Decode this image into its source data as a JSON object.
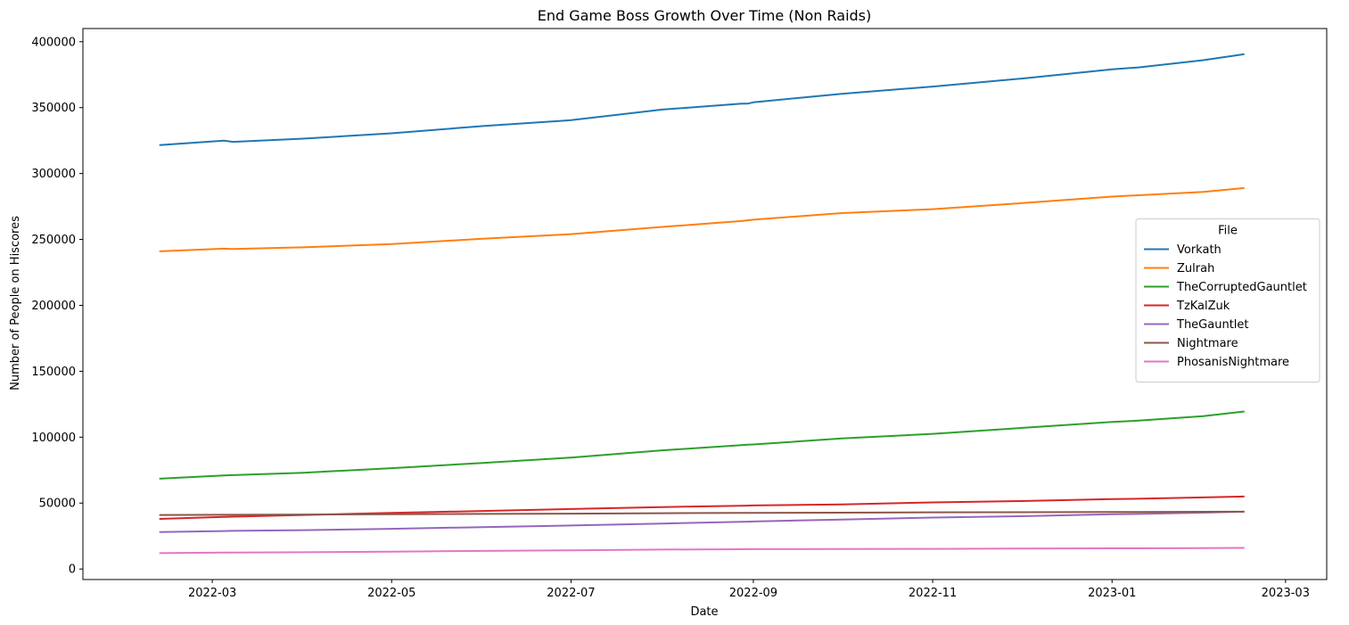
{
  "chart_data": {
    "type": "line",
    "title": "End Game Boss Growth Over Time (Non Raids)",
    "xlabel": "Date",
    "ylabel": "Number of People on Hiscores",
    "xlim": [
      "2022-01-16",
      "2023-03-15"
    ],
    "ylim": [
      -8000,
      410000
    ],
    "x_ticks": [
      "2022-03-01",
      "2022-05-01",
      "2022-07-01",
      "2022-09-01",
      "2022-11-01",
      "2023-01-01",
      "2023-03-01"
    ],
    "x_tick_labels": [
      "2022-03",
      "2022-05",
      "2022-07",
      "2022-09",
      "2022-11",
      "2023-01",
      "2023-03"
    ],
    "y_ticks": [
      0,
      50000,
      100000,
      150000,
      200000,
      250000,
      300000,
      350000,
      400000
    ],
    "y_tick_labels": [
      "0",
      "50000",
      "100000",
      "150000",
      "200000",
      "250000",
      "300000",
      "350000",
      "400000"
    ],
    "grid": false,
    "legend": {
      "title": "File",
      "placement": "center-right"
    },
    "x": [
      "2022-02-11",
      "2022-03-05",
      "2022-03-08",
      "2022-04-01",
      "2022-05-01",
      "2022-06-01",
      "2022-07-01",
      "2022-08-01",
      "2022-08-28",
      "2022-08-30",
      "2022-09-01",
      "2022-10-01",
      "2022-11-01",
      "2022-12-01",
      "2023-01-01",
      "2023-01-10",
      "2023-02-01",
      "2023-02-15"
    ],
    "series": [
      {
        "name": "Vorkath",
        "color": "#1f77b4",
        "values": [
          321500,
          325000,
          324000,
          326500,
          330500,
          336000,
          340500,
          348500,
          353000,
          353000,
          354000,
          360500,
          366000,
          372000,
          379000,
          380500,
          386000,
          390500
        ]
      },
      {
        "name": "Zulrah",
        "color": "#ff7f0e",
        "values": [
          241000,
          243000,
          242800,
          244000,
          246500,
          250500,
          254000,
          259500,
          264000,
          264500,
          265000,
          270000,
          273000,
          277500,
          282500,
          283500,
          286000,
          289000
        ]
      },
      {
        "name": "TheCorruptedGauntlet",
        "color": "#2ca02c",
        "values": [
          68500,
          71000,
          71200,
          73000,
          76500,
          80500,
          84500,
          90000,
          94000,
          94300,
          94500,
          99000,
          102500,
          107000,
          111500,
          112500,
          116000,
          119500
        ]
      },
      {
        "name": "TzKalZuk",
        "color": "#d62728",
        "values": [
          38000,
          39500,
          39700,
          41000,
          42500,
          44000,
          45500,
          47000,
          48000,
          48100,
          48200,
          49000,
          50500,
          51500,
          53000,
          53300,
          54300,
          55000
        ]
      },
      {
        "name": "TheGauntlet",
        "color": "#9467bd",
        "values": [
          28000,
          28800,
          28900,
          29500,
          30500,
          31800,
          33000,
          34500,
          35800,
          35900,
          36000,
          37500,
          39000,
          40000,
          41500,
          41800,
          42700,
          43500
        ]
      },
      {
        "name": "Nightmare",
        "color": "#8c564b",
        "values": [
          41000,
          41100,
          41100,
          41300,
          41500,
          41800,
          42000,
          42300,
          42500,
          42500,
          42500,
          42700,
          43000,
          43100,
          43300,
          43300,
          43400,
          43500
        ]
      },
      {
        "name": "PhosanisNightmare",
        "color": "#e377c2",
        "values": [
          12000,
          12400,
          12450,
          12700,
          13200,
          13700,
          14200,
          14700,
          15000,
          15000,
          15050,
          15150,
          15300,
          15450,
          15650,
          15700,
          15900,
          16000
        ]
      }
    ]
  }
}
